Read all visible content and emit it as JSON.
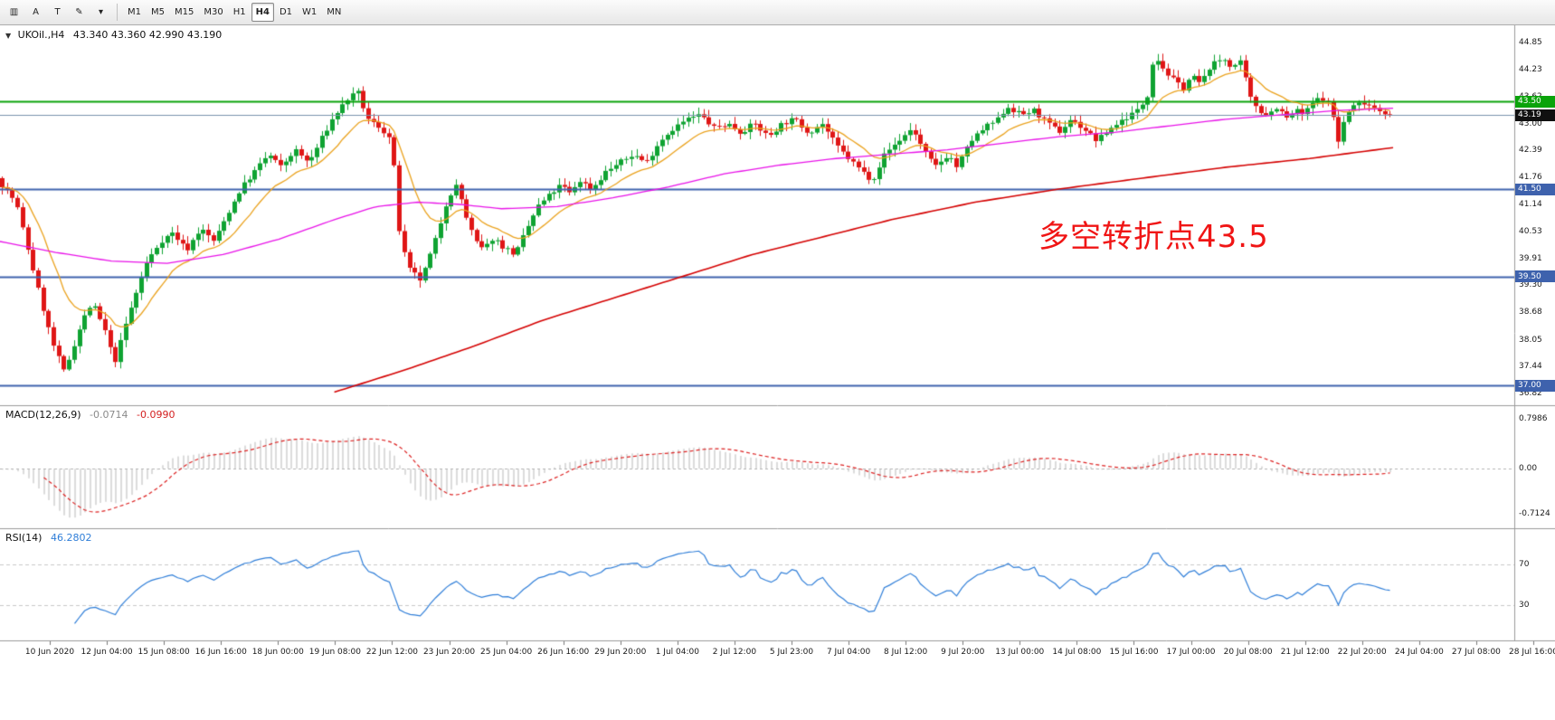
{
  "toolbar": {
    "tools": [
      {
        "name": "chart-window-icon",
        "glyph": "▥"
      },
      {
        "name": "arrow-tool",
        "glyph": "A"
      },
      {
        "name": "text-tool",
        "glyph": "T"
      },
      {
        "name": "draw-tool",
        "glyph": "✎"
      },
      {
        "name": "tools-dropdown-caret",
        "glyph": "▾"
      }
    ],
    "timeframes": [
      {
        "label": "M1"
      },
      {
        "label": "M5"
      },
      {
        "label": "M15"
      },
      {
        "label": "M30"
      },
      {
        "label": "H1"
      },
      {
        "label": "H4",
        "active": true
      },
      {
        "label": "D1"
      },
      {
        "label": "W1"
      },
      {
        "label": "MN"
      }
    ]
  },
  "header": {
    "collapse_icon": "▼",
    "title": "UKOil.,H4",
    "ohlc": "43.340 43.360 42.990 43.190"
  },
  "annotation": {
    "text": "多空转折点43.5",
    "color": "#f01515"
  },
  "chart_data": [
    {
      "type": "candlestick",
      "symbol": "UKOil.",
      "period": "H4",
      "current_ohlc": {
        "open": 43.34,
        "high": 43.36,
        "low": 42.99,
        "close": 43.19
      },
      "y_axis_ticks": [
        "44.85",
        "44.23",
        "43.62",
        "43.00",
        "42.39",
        "41.76",
        "41.14",
        "40.53",
        "39.91",
        "39.30",
        "38.68",
        "38.05",
        "37.44",
        "36.82"
      ],
      "y_range_approx": [
        36.82,
        44.85
      ],
      "levels": [
        {
          "price": 43.5,
          "label": "43.50",
          "line_color": "#0aa30a",
          "tag_color": "#0aa30a",
          "width": 2
        },
        {
          "price": 43.19,
          "label": "43.19",
          "line_color": "#7a93ad",
          "tag_color": "#101010",
          "width": 1
        },
        {
          "price": 41.5,
          "label": "41.50",
          "line_color": "#3e62ad",
          "tag_color": "#3e62ad",
          "width": 2
        },
        {
          "price": 39.5,
          "label": "39.50",
          "line_color": "#3e62ad",
          "tag_color": "#3e62ad",
          "width": 2
        },
        {
          "price": 37.0,
          "label": "37.00",
          "line_color": "#3e62ad",
          "tag_color": "#3e62ad",
          "width": 2
        }
      ],
      "style": {
        "up": "#0fa332",
        "down": "#df1616",
        "fast_ma": "#eaa21e",
        "mid_ma": "#e812e8",
        "slow_ma": "#d40000"
      },
      "price_path": [
        [
          0,
          41.6
        ],
        [
          0.01,
          41.2
        ],
        [
          0.026,
          39.2
        ],
        [
          0.036,
          38.0
        ],
        [
          0.045,
          37.3
        ],
        [
          0.058,
          38.5
        ],
        [
          0.065,
          38.9
        ],
        [
          0.075,
          38.2
        ],
        [
          0.081,
          37.5
        ],
        [
          0.091,
          38.6
        ],
        [
          0.104,
          39.8
        ],
        [
          0.114,
          40.3
        ],
        [
          0.123,
          40.5
        ],
        [
          0.133,
          40.1
        ],
        [
          0.143,
          40.6
        ],
        [
          0.153,
          40.3
        ],
        [
          0.162,
          40.9
        ],
        [
          0.172,
          41.5
        ],
        [
          0.182,
          41.9
        ],
        [
          0.192,
          42.3
        ],
        [
          0.201,
          42.0
        ],
        [
          0.211,
          42.4
        ],
        [
          0.221,
          42.1
        ],
        [
          0.231,
          42.7
        ],
        [
          0.24,
          43.2
        ],
        [
          0.25,
          43.6
        ],
        [
          0.257,
          43.7
        ],
        [
          0.263,
          43.1
        ],
        [
          0.273,
          42.9
        ],
        [
          0.281,
          42.6
        ],
        [
          0.286,
          40.6
        ],
        [
          0.292,
          39.7
        ],
        [
          0.302,
          39.4
        ],
        [
          0.312,
          40.3
        ],
        [
          0.321,
          41.3
        ],
        [
          0.328,
          41.6
        ],
        [
          0.334,
          40.9
        ],
        [
          0.341,
          40.3
        ],
        [
          0.347,
          40.1
        ],
        [
          0.354,
          40.4
        ],
        [
          0.36,
          40.2
        ],
        [
          0.37,
          40.0
        ],
        [
          0.377,
          40.5
        ],
        [
          0.386,
          41.1
        ],
        [
          0.396,
          41.4
        ],
        [
          0.403,
          41.6
        ],
        [
          0.409,
          41.4
        ],
        [
          0.416,
          41.7
        ],
        [
          0.425,
          41.5
        ],
        [
          0.435,
          41.9
        ],
        [
          0.445,
          42.1
        ],
        [
          0.455,
          42.3
        ],
        [
          0.464,
          42.1
        ],
        [
          0.474,
          42.6
        ],
        [
          0.484,
          42.9
        ],
        [
          0.494,
          43.1
        ],
        [
          0.503,
          43.2
        ],
        [
          0.513,
          42.9
        ],
        [
          0.523,
          43.0
        ],
        [
          0.532,
          42.8
        ],
        [
          0.542,
          43.0
        ],
        [
          0.552,
          42.7
        ],
        [
          0.562,
          43.0
        ],
        [
          0.571,
          43.1
        ],
        [
          0.581,
          42.8
        ],
        [
          0.591,
          43.0
        ],
        [
          0.601,
          42.5
        ],
        [
          0.61,
          42.2
        ],
        [
          0.62,
          41.9
        ],
        [
          0.627,
          41.7
        ],
        [
          0.636,
          42.3
        ],
        [
          0.646,
          42.6
        ],
        [
          0.656,
          42.9
        ],
        [
          0.662,
          42.5
        ],
        [
          0.672,
          42.0
        ],
        [
          0.682,
          42.3
        ],
        [
          0.688,
          42.0
        ],
        [
          0.698,
          42.6
        ],
        [
          0.708,
          42.9
        ],
        [
          0.718,
          43.1
        ],
        [
          0.724,
          43.4
        ],
        [
          0.734,
          43.2
        ],
        [
          0.744,
          43.3
        ],
        [
          0.753,
          43.0
        ],
        [
          0.763,
          42.8
        ],
        [
          0.769,
          43.1
        ],
        [
          0.779,
          42.9
        ],
        [
          0.789,
          42.6
        ],
        [
          0.799,
          42.9
        ],
        [
          0.808,
          43.1
        ],
        [
          0.818,
          43.3
        ],
        [
          0.825,
          43.6
        ],
        [
          0.83,
          44.6
        ],
        [
          0.838,
          44.2
        ],
        [
          0.844,
          44.0
        ],
        [
          0.851,
          43.8
        ],
        [
          0.857,
          44.1
        ],
        [
          0.864,
          43.9
        ],
        [
          0.87,
          44.3
        ],
        [
          0.88,
          44.5
        ],
        [
          0.886,
          44.3
        ],
        [
          0.893,
          44.4
        ],
        [
          0.899,
          43.6
        ],
        [
          0.906,
          43.3
        ],
        [
          0.912,
          43.2
        ],
        [
          0.919,
          43.4
        ],
        [
          0.925,
          43.1
        ],
        [
          0.932,
          43.3
        ],
        [
          0.938,
          43.2
        ],
        [
          0.945,
          43.5
        ],
        [
          0.951,
          43.6
        ],
        [
          0.958,
          43.4
        ],
        [
          0.962,
          42.5
        ],
        [
          0.968,
          43.2
        ],
        [
          0.974,
          43.4
        ],
        [
          0.981,
          43.5
        ],
        [
          0.987,
          43.4
        ],
        [
          0.994,
          43.3
        ],
        [
          1,
          43.19
        ]
      ],
      "mid_ma_path": [
        [
          0,
          40.3
        ],
        [
          0.04,
          40.05
        ],
        [
          0.08,
          39.85
        ],
        [
          0.12,
          39.8
        ],
        [
          0.16,
          40.0
        ],
        [
          0.2,
          40.35
        ],
        [
          0.24,
          40.8
        ],
        [
          0.27,
          41.1
        ],
        [
          0.3,
          41.2
        ],
        [
          0.33,
          41.15
        ],
        [
          0.36,
          41.05
        ],
        [
          0.4,
          41.1
        ],
        [
          0.44,
          41.3
        ],
        [
          0.48,
          41.55
        ],
        [
          0.52,
          41.85
        ],
        [
          0.56,
          42.05
        ],
        [
          0.6,
          42.2
        ],
        [
          0.64,
          42.3
        ],
        [
          0.68,
          42.4
        ],
        [
          0.72,
          42.55
        ],
        [
          0.76,
          42.7
        ],
        [
          0.8,
          42.8
        ],
        [
          0.84,
          42.95
        ],
        [
          0.88,
          43.1
        ],
        [
          0.92,
          43.2
        ],
        [
          0.96,
          43.3
        ],
        [
          1,
          43.35
        ]
      ],
      "slow_ma_path": [
        [
          0.24,
          36.85
        ],
        [
          0.29,
          37.35
        ],
        [
          0.34,
          37.9
        ],
        [
          0.39,
          38.5
        ],
        [
          0.44,
          39.0
        ],
        [
          0.49,
          39.5
        ],
        [
          0.54,
          40.0
        ],
        [
          0.59,
          40.4
        ],
        [
          0.64,
          40.8
        ],
        [
          0.7,
          41.2
        ],
        [
          0.76,
          41.5
        ],
        [
          0.82,
          41.75
        ],
        [
          0.88,
          42.0
        ],
        [
          0.94,
          42.2
        ],
        [
          1,
          42.45
        ]
      ],
      "x_labels": [
        "10 Jun 2020",
        "12 Jun 04:00",
        "15 Jun 08:00",
        "16 Jun 16:00",
        "18 Jun 00:00",
        "19 Jun 08:00",
        "22 Jun 12:00",
        "23 Jun 20:00",
        "25 Jun 04:00",
        "26 Jun 16:00",
        "29 Jun 20:00",
        "1 Jul 04:00",
        "2 Jul 12:00",
        "5 Jul 23:00",
        "7 Jul 04:00",
        "8 Jul 12:00",
        "9 Jul 20:00",
        "13 Jul 00:00",
        "14 Jul 08:00",
        "15 Jul 16:00",
        "17 Jul 00:00",
        "20 Jul 08:00",
        "21 Jul 12:00",
        "22 Jul 20:00",
        "24 Jul 04:00",
        "27 Jul 08:00",
        "28 Jul 16:00"
      ]
    },
    {
      "type": "bar",
      "name_label": "MACD(12,26,9)",
      "params": [
        12,
        26,
        9
      ],
      "values_label": [
        "-0.0714",
        "-0.0990"
      ],
      "current_values": [
        -0.0714,
        -0.099
      ],
      "y_ticks": [
        {
          "v": 0.7986,
          "label": "0.7986"
        },
        {
          "v": 0,
          "label": "0.00"
        },
        {
          "v": -0.7124,
          "label": "-0.7124"
        }
      ],
      "bar_color": "#b9b9b9",
      "signal_color": "#dc2020"
    },
    {
      "type": "line",
      "name_label": "RSI(14)",
      "period": 14,
      "value_label": "46.2802",
      "current_value": 46.2802,
      "levels": [
        70,
        30
      ],
      "y_ticks": [
        {
          "v": 70,
          "label": "70"
        },
        {
          "v": 30,
          "label": "30"
        }
      ],
      "line_color": "#2f7ed8",
      "level_color": "#c8c8c8"
    }
  ]
}
